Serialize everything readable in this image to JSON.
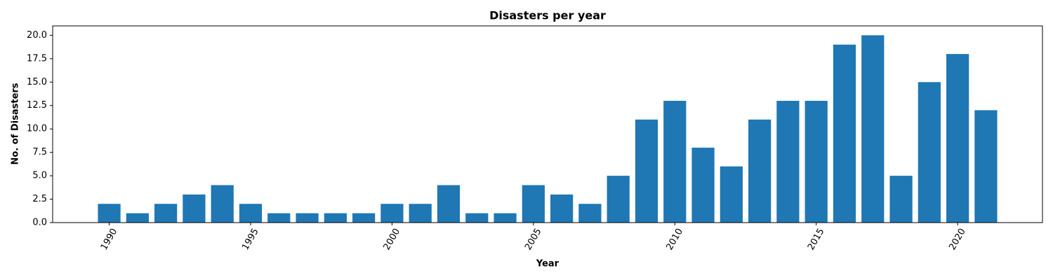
{
  "chart_data": {
    "type": "bar",
    "title": "Disasters per year",
    "x_label": "Year",
    "y_label": "No. of Disasters",
    "x": [
      1990,
      1991,
      1992,
      1993,
      1994,
      1995,
      1996,
      1997,
      1998,
      1999,
      2000,
      2001,
      2002,
      2003,
      2004,
      2005,
      2006,
      2007,
      2008,
      2009,
      2010,
      2011,
      2012,
      2013,
      2014,
      2015,
      2016,
      2017,
      2018,
      2019,
      2020,
      2021
    ],
    "values": [
      2,
      1,
      2,
      3,
      4,
      2,
      1,
      1,
      1,
      1,
      2,
      2,
      4,
      1,
      1,
      4,
      3,
      2,
      5,
      11,
      13,
      8,
      6,
      11,
      13,
      13,
      19,
      20,
      5,
      15,
      18,
      12
    ],
    "color": "#1f77b4",
    "xlim": [
      1988,
      2023
    ],
    "xticks": [
      1990,
      1995,
      2000,
      2005,
      2010,
      2015,
      2020
    ],
    "ylim": [
      0,
      21
    ],
    "yticks": [
      {
        "value": 0,
        "label": "0.0"
      },
      2.5,
      {
        "value": 5,
        "label": "5.0"
      },
      7.5,
      {
        "value": 10,
        "label": "10.0"
      },
      12.5,
      {
        "value": 15,
        "label": "15.0"
      },
      17.5,
      {
        "value": 20,
        "label": "20.0"
      }
    ]
  }
}
